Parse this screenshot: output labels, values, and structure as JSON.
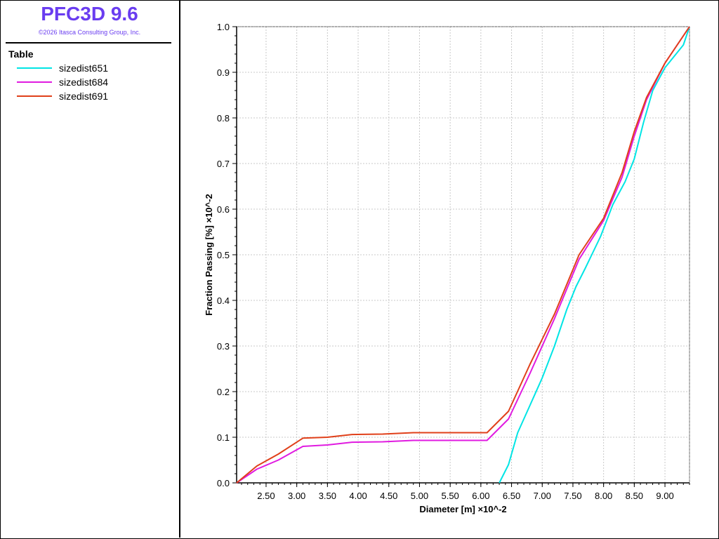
{
  "app": {
    "title": "PFC3D 9.6",
    "copyright": "©2026 Itasca Consulting Group, Inc."
  },
  "legend": {
    "heading": "Table",
    "items": [
      {
        "label": "sizedist651",
        "color": "#00e5e5"
      },
      {
        "label": "sizedist684",
        "color": "#e01be0"
      },
      {
        "label": "sizedist691",
        "color": "#e0401a"
      }
    ]
  },
  "chart_data": {
    "type": "line",
    "xlabel": "Diameter [m]  ×10^-2",
    "ylabel": "Fraction Passing [%]  ×10^-2",
    "xlim": [
      2.02,
      9.4
    ],
    "ylim": [
      0,
      1.0
    ],
    "x_ticks": [
      "2.50",
      "3.00",
      "3.50",
      "4.00",
      "4.50",
      "5.00",
      "5.50",
      "6.00",
      "6.50",
      "7.00",
      "7.50",
      "8.00",
      "8.50",
      "9.00"
    ],
    "y_ticks": [
      "0.0",
      "0.1",
      "0.2",
      "0.3",
      "0.4",
      "0.5",
      "0.6",
      "0.7",
      "0.8",
      "0.9",
      "1.0"
    ],
    "grid": true,
    "series": [
      {
        "name": "sizedist651",
        "color": "#00e5e5",
        "x": [
          6.3,
          6.45,
          6.6,
          6.8,
          7.0,
          7.2,
          7.4,
          7.55,
          7.7,
          7.95,
          8.15,
          8.35,
          8.5,
          8.65,
          8.8,
          9.0,
          9.3,
          9.4
        ],
        "y": [
          0.0,
          0.04,
          0.11,
          0.17,
          0.23,
          0.3,
          0.38,
          0.43,
          0.47,
          0.54,
          0.61,
          0.66,
          0.71,
          0.79,
          0.86,
          0.91,
          0.96,
          1.0
        ]
      },
      {
        "name": "sizedist684",
        "color": "#e01be0",
        "x": [
          2.02,
          2.35,
          2.7,
          3.1,
          3.5,
          3.9,
          4.4,
          4.9,
          5.5,
          6.1,
          6.45,
          6.8,
          7.2,
          7.6,
          8.0,
          8.3,
          8.5,
          8.7,
          9.0,
          9.4
        ],
        "y": [
          0.0,
          0.03,
          0.05,
          0.08,
          0.083,
          0.089,
          0.09,
          0.093,
          0.093,
          0.093,
          0.14,
          0.24,
          0.36,
          0.49,
          0.575,
          0.67,
          0.76,
          0.84,
          0.92,
          1.0
        ]
      },
      {
        "name": "sizedist691",
        "color": "#e0401a",
        "x": [
          2.02,
          2.35,
          2.7,
          3.1,
          3.5,
          3.9,
          4.4,
          4.9,
          5.5,
          6.1,
          6.45,
          6.8,
          7.2,
          7.6,
          8.0,
          8.3,
          8.5,
          8.7,
          9.0,
          9.4
        ],
        "y": [
          0.0,
          0.037,
          0.063,
          0.098,
          0.1,
          0.106,
          0.107,
          0.11,
          0.11,
          0.11,
          0.157,
          0.26,
          0.37,
          0.5,
          0.58,
          0.68,
          0.77,
          0.845,
          0.92,
          1.0
        ]
      }
    ]
  }
}
